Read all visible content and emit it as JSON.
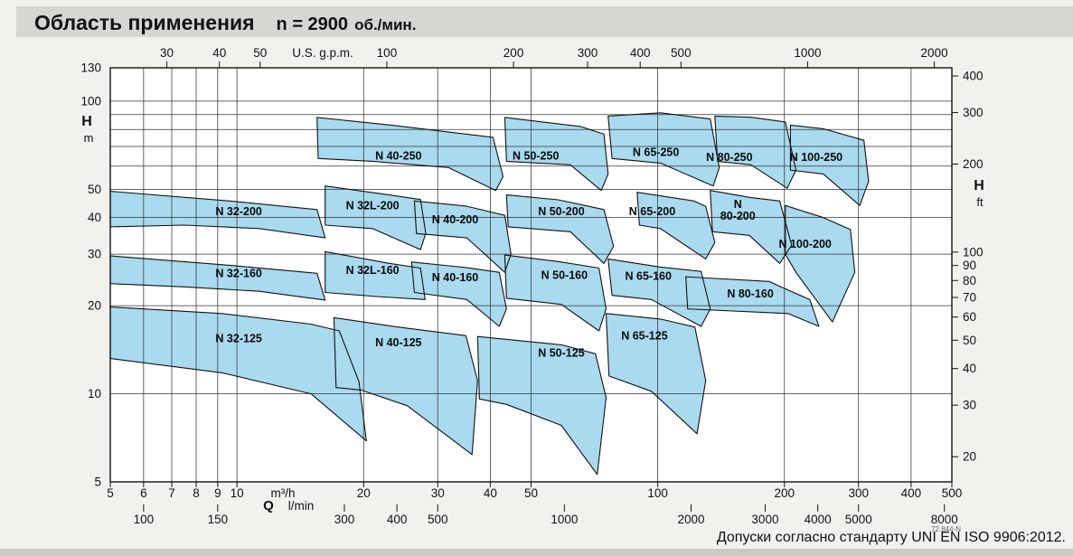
{
  "title": {
    "main": "Область применения",
    "speed": "n = 2900",
    "unit": "об./мин."
  },
  "footer": {
    "note": "Допуски согласно стандарту UNI EN ISO 9906:2012.",
    "doc_number": "72.844-N"
  },
  "chart_data": {
    "type": "area",
    "title": "Область применения n = 2900 об./мин.",
    "x_scale": "log",
    "y_scale": "log",
    "x_range_m3h": [
      5,
      500
    ],
    "y_range_m": [
      5,
      130
    ],
    "axes": {
      "top": {
        "unit": "U.S. g.p.m.",
        "ticks": [
          30,
          40,
          50,
          100,
          200,
          300,
          400,
          500,
          1000,
          2000
        ],
        "to_m3h": 0.2271
      },
      "left": {
        "label": "H",
        "unit": "m",
        "ticks": [
          130,
          100,
          50,
          40,
          30,
          20,
          10,
          5
        ]
      },
      "right": {
        "label": "H",
        "unit": "ft",
        "ticks": [
          400,
          300,
          200,
          100,
          90,
          80,
          70,
          60,
          50,
          40,
          30,
          20
        ],
        "to_m": 0.3048
      },
      "bottom_primary": {
        "label": "Q",
        "unit": "m³/h",
        "ticks": [
          5,
          6,
          7,
          8,
          9,
          10,
          20,
          30,
          40,
          50,
          100,
          200,
          300,
          400,
          500
        ]
      },
      "bottom_secondary": {
        "unit": "l/min",
        "ticks": [
          100,
          150,
          300,
          400,
          500,
          1000,
          2000,
          3000,
          4000,
          5000,
          8000
        ],
        "to_m3h": 0.06
      }
    },
    "gridlines": {
      "vertical_m3h": [
        5,
        6,
        7,
        8,
        9,
        10,
        20,
        30,
        40,
        50,
        100,
        200,
        300,
        400,
        500
      ],
      "horizontal_m": [
        130,
        100,
        90,
        80,
        70,
        60,
        50,
        40,
        30,
        20,
        10,
        5
      ]
    },
    "style": {
      "region_fill": "#a9daef",
      "region_stroke": "#111111",
      "grid_color": "#333333"
    },
    "regions": [
      {
        "name": "N 32-125",
        "label_lines": [
          "N 32-125"
        ],
        "label_at_q_h": [
          10.1,
          15.5
        ],
        "polygon_q_h": [
          [
            5,
            19.8
          ],
          [
            9.2,
            18.8
          ],
          [
            15,
            17.3
          ],
          [
            17.5,
            16.4
          ],
          [
            19.5,
            11
          ],
          [
            20.3,
            6.9
          ],
          [
            15,
            10
          ],
          [
            9.2,
            11.8
          ],
          [
            5,
            13.2
          ]
        ]
      },
      {
        "name": "N 40-125",
        "label_lines": [
          "N 40-125"
        ],
        "label_at_q_h": [
          24.2,
          15
        ],
        "polygon_q_h": [
          [
            17,
            18.2
          ],
          [
            24.2,
            16.9
          ],
          [
            35,
            15.8
          ],
          [
            37.3,
            11.1
          ],
          [
            36.2,
            6.2
          ],
          [
            25.4,
            9.1
          ],
          [
            19.7,
            10.3
          ],
          [
            17.2,
            10.5
          ]
        ]
      },
      {
        "name": "N 50-125",
        "label_lines": [
          "N 50-125"
        ],
        "label_at_q_h": [
          59,
          13.8
        ],
        "polygon_q_h": [
          [
            37.3,
            15.7
          ],
          [
            59,
            14.7
          ],
          [
            71.1,
            13.7
          ],
          [
            75.4,
            9.7
          ],
          [
            71.8,
            5.3
          ],
          [
            59,
            7.8
          ],
          [
            43.7,
            9.2
          ],
          [
            37.7,
            9.6
          ]
        ]
      },
      {
        "name": "N 65-125",
        "label_lines": [
          "N 65-125"
        ],
        "label_at_q_h": [
          93,
          15.8
        ],
        "polygon_q_h": [
          [
            75.4,
            18.8
          ],
          [
            101.5,
            18
          ],
          [
            122.5,
            16.9
          ],
          [
            130,
            11.1
          ],
          [
            124,
            7.3
          ],
          [
            96.6,
            10.2
          ],
          [
            76.6,
            11.5
          ]
        ]
      },
      {
        "name": "N 32-160",
        "label_lines": [
          "N 32-160"
        ],
        "label_at_q_h": [
          10.1,
          25.8
        ],
        "polygon_q_h": [
          [
            5,
            29.6
          ],
          [
            9.6,
            27.5
          ],
          [
            15.5,
            25.8
          ],
          [
            16.2,
            20.9
          ],
          [
            11.3,
            22.4
          ],
          [
            7.5,
            23.2
          ],
          [
            5,
            23.8
          ]
        ]
      },
      {
        "name": "N 32L-160",
        "label_lines": [
          "N 32L-160"
        ],
        "label_at_q_h": [
          21,
          26.5
        ],
        "polygon_q_h": [
          [
            16.2,
            30.6
          ],
          [
            23,
            27.9
          ],
          [
            27.3,
            26.9
          ],
          [
            28,
            21
          ],
          [
            21.5,
            21.5
          ],
          [
            16.2,
            22.2
          ]
        ]
      },
      {
        "name": "N 40-160",
        "label_lines": [
          "N 40-160"
        ],
        "label_at_q_h": [
          33,
          25
        ],
        "polygon_q_h": [
          [
            26,
            28.2
          ],
          [
            35,
            27
          ],
          [
            42,
            26
          ],
          [
            43.7,
            19.5
          ],
          [
            42,
            17
          ],
          [
            35.2,
            21
          ],
          [
            26.4,
            22.2
          ]
        ]
      },
      {
        "name": "N 50-160",
        "label_lines": [
          "N 50-160"
        ],
        "label_at_q_h": [
          60,
          25.5
        ],
        "polygon_q_h": [
          [
            43.3,
            29.8
          ],
          [
            58,
            28.3
          ],
          [
            72.5,
            26.9
          ],
          [
            75.4,
            19.5
          ],
          [
            72.5,
            16.4
          ],
          [
            59,
            20.2
          ],
          [
            43.7,
            21.2
          ]
        ]
      },
      {
        "name": "N 65-160",
        "label_lines": [
          "N 65-160"
        ],
        "label_at_q_h": [
          95,
          25.3
        ],
        "polygon_q_h": [
          [
            76.2,
            28.9
          ],
          [
            101.5,
            27.1
          ],
          [
            126.8,
            26.2
          ],
          [
            133.3,
            19.5
          ],
          [
            126.8,
            17
          ],
          [
            96.6,
            21
          ],
          [
            77.9,
            21.7
          ]
        ]
      },
      {
        "name": "N 80-160",
        "label_lines": [
          "N 80-160"
        ],
        "label_at_q_h": [
          166,
          22
        ],
        "polygon_q_h": [
          [
            116.6,
            25.1
          ],
          [
            184,
            24.2
          ],
          [
            195,
            23.3
          ],
          [
            229.8,
            21
          ],
          [
            241.5,
            17
          ],
          [
            204,
            18.8
          ],
          [
            117.8,
            19.5
          ]
        ]
      },
      {
        "name": "N 32-200",
        "label_lines": [
          "N 32-200"
        ],
        "label_at_q_h": [
          10.1,
          42
        ],
        "polygon_q_h": [
          [
            5,
            49.2
          ],
          [
            9.6,
            45.6
          ],
          [
            15.5,
            42.6
          ],
          [
            16.2,
            34.1
          ],
          [
            11.3,
            36.7
          ],
          [
            7.5,
            37.7
          ],
          [
            5,
            37.2
          ]
        ]
      },
      {
        "name": "N 32L-200",
        "label_lines": [
          "N 32L-200"
        ],
        "label_at_q_h": [
          21,
          44
        ],
        "polygon_q_h": [
          [
            16.2,
            51.3
          ],
          [
            23,
            47.8
          ],
          [
            27.3,
            46.1
          ],
          [
            28.1,
            35.3
          ],
          [
            27.3,
            31.1
          ],
          [
            21,
            36.7
          ],
          [
            16.2,
            37.7
          ]
        ]
      },
      {
        "name": "N 40-200",
        "label_lines": [
          "N 40-200"
        ],
        "label_at_q_h": [
          33,
          39.5
        ],
        "polygon_q_h": [
          [
            26.4,
            45.6
          ],
          [
            35,
            43.8
          ],
          [
            43.3,
            40.7
          ],
          [
            44.8,
            30
          ],
          [
            43.3,
            26
          ],
          [
            35.2,
            34.1
          ],
          [
            26.7,
            35.3
          ]
        ]
      },
      {
        "name": "N 50-200",
        "label_lines": [
          "N 50-200"
        ],
        "label_at_q_h": [
          59,
          42
        ],
        "polygon_q_h": [
          [
            43.7,
            47.8
          ],
          [
            58,
            46
          ],
          [
            74.5,
            42.6
          ],
          [
            78.5,
            31.9
          ],
          [
            74.5,
            27.9
          ],
          [
            62,
            35.8
          ],
          [
            44.1,
            37.2
          ]
        ]
      },
      {
        "name": "N 65-200",
        "label_lines": [
          "N 65-200"
        ],
        "label_at_q_h": [
          97,
          42
        ],
        "polygon_q_h": [
          [
            89.3,
            48.8
          ],
          [
            121.8,
            45.6
          ],
          [
            130,
            43.7
          ],
          [
            136.7,
            32.9
          ],
          [
            130,
            28.9
          ],
          [
            101.5,
            36.7
          ],
          [
            90.5,
            37.7
          ]
        ]
      },
      {
        "name": "N 80-200",
        "label_lines": [
          "N",
          "80-200"
        ],
        "label_at_q_h": [
          155,
          42.5
        ],
        "polygon_q_h": [
          [
            133.3,
            49.5
          ],
          [
            166.6,
            46.8
          ],
          [
            195,
            45.6
          ],
          [
            208,
            32.2
          ],
          [
            195,
            27.9
          ],
          [
            165,
            34.8
          ],
          [
            134.9,
            35.8
          ]
        ]
      },
      {
        "name": "N 100-200",
        "label_lines": [
          "N 100-200"
        ],
        "label_at_q_h": [
          224,
          32.5
        ],
        "polygon_q_h": [
          [
            201,
            44
          ],
          [
            247.5,
            40
          ],
          [
            287,
            36.4
          ],
          [
            294,
            26
          ],
          [
            260,
            17.6
          ],
          [
            213,
            26
          ],
          [
            201,
            30
          ]
        ]
      },
      {
        "name": "N 40-250",
        "label_lines": [
          "N 40-250"
        ],
        "label_at_q_h": [
          24.2,
          65
        ],
        "polygon_q_h": [
          [
            15.5,
            88
          ],
          [
            23.3,
            82.8
          ],
          [
            40.6,
            75.2
          ],
          [
            42.9,
            55.2
          ],
          [
            41.2,
            49.5
          ],
          [
            31.8,
            59.3
          ],
          [
            21,
            62.3
          ],
          [
            15.6,
            63.7
          ]
        ]
      },
      {
        "name": "N 50-250",
        "label_lines": [
          "N 50-250"
        ],
        "label_at_q_h": [
          51.3,
          65
        ],
        "polygon_q_h": [
          [
            43.3,
            88
          ],
          [
            65.5,
            81.9
          ],
          [
            74.5,
            77.1
          ],
          [
            76.2,
            56.4
          ],
          [
            73.4,
            49.5
          ],
          [
            62,
            60.6
          ],
          [
            43.7,
            62.3
          ]
        ]
      },
      {
        "name": "N 65-250",
        "label_lines": [
          "N 65-250"
        ],
        "label_at_q_h": [
          99,
          67
        ],
        "polygon_q_h": [
          [
            76.2,
            88.9
          ],
          [
            101.5,
            91.2
          ],
          [
            133.3,
            86.9
          ],
          [
            140,
            59.3
          ],
          [
            135.5,
            51.3
          ],
          [
            101.5,
            61.4
          ],
          [
            77.9,
            63.7
          ]
        ]
      },
      {
        "name": "N 80-250",
        "label_lines": [
          "N 80-250"
        ],
        "label_at_q_h": [
          148,
          64.5
        ],
        "polygon_q_h": [
          [
            136.7,
            88.9
          ],
          [
            166.6,
            88.1
          ],
          [
            201,
            84.9
          ],
          [
            213,
            58.1
          ],
          [
            203,
            50.4
          ],
          [
            166.6,
            60.6
          ],
          [
            138.7,
            62.3
          ]
        ]
      },
      {
        "name": "N 100-250",
        "label_lines": [
          "N 100-250"
        ],
        "label_at_q_h": [
          238,
          64.5
        ],
        "polygon_q_h": [
          [
            206.7,
            82.8
          ],
          [
            247.5,
            80.5
          ],
          [
            309,
            73.5
          ],
          [
            317,
            53.2
          ],
          [
            302,
            44
          ],
          [
            247.5,
            56.4
          ],
          [
            206.7,
            58.1
          ]
        ]
      }
    ]
  }
}
